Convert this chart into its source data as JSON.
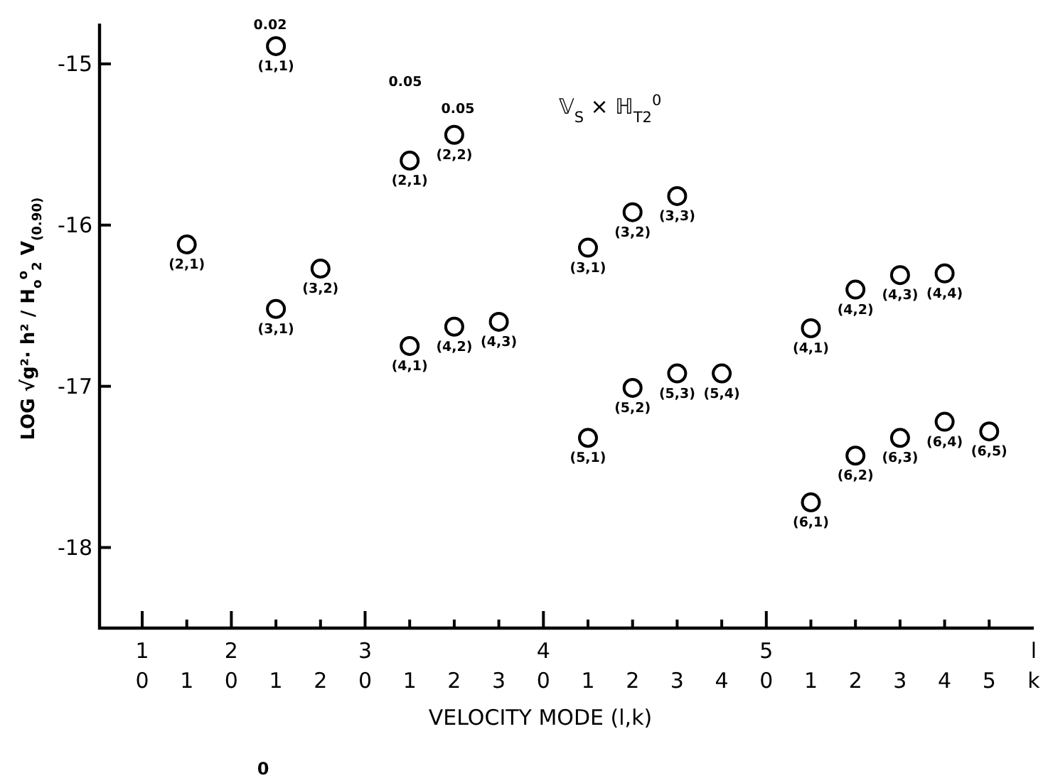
{
  "chart_data": {
    "type": "scatter",
    "title": "𝕍$_{S}$ × ℍ$_{T2}$$^{0}$",
    "xlabel": "VELOCITY MODE (l,k)",
    "ylabel": "LOG √g²· h² / H$_{o}$$^{o}$$_{2}$ V$_{(0.90)}$",
    "categories": [
      "1\n0",
      "1",
      "2\n0",
      "1",
      "2",
      "3\n0",
      "1",
      "2",
      "3",
      "4\n0",
      "1",
      "2",
      "3",
      "4",
      "5\n0",
      "1",
      "2",
      "3",
      "4",
      "5",
      "l\nk"
    ],
    "ylim": [
      -18.5,
      -14.75
    ],
    "yticks": [
      -15,
      -16,
      -17,
      -18
    ],
    "marker": "circle",
    "series": [
      {
        "name": "(1,1)",
        "color": "#000000",
        "values": [
          null,
          null,
          null,
          -14.89,
          null,
          null,
          null,
          null,
          null,
          null,
          null,
          null,
          null,
          null,
          null,
          null,
          null,
          null,
          null,
          null,
          null
        ]
      },
      {
        "name": "(2,1)",
        "color": "#000000",
        "values": [
          null,
          -16.12,
          null,
          null,
          null,
          null,
          -15.6,
          null,
          null,
          null,
          null,
          null,
          null,
          null,
          null,
          null,
          null,
          null,
          null,
          null,
          null
        ]
      },
      {
        "name": "(2,2)",
        "color": "#000000",
        "values": [
          null,
          null,
          null,
          null,
          null,
          null,
          null,
          -15.44,
          null,
          null,
          null,
          null,
          null,
          null,
          null,
          null,
          null,
          null,
          null,
          null,
          null
        ]
      },
      {
        "name": "(3,1)",
        "color": "#000000",
        "values": [
          null,
          null,
          null,
          -16.52,
          null,
          null,
          null,
          null,
          null,
          null,
          -16.14,
          null,
          null,
          null,
          null,
          null,
          null,
          null,
          null,
          null,
          null
        ]
      },
      {
        "name": "(3,2)",
        "color": "#000000",
        "values": [
          null,
          null,
          null,
          null,
          -16.27,
          null,
          null,
          null,
          null,
          null,
          null,
          -15.92,
          null,
          null,
          null,
          null,
          null,
          null,
          null,
          null,
          null
        ]
      },
      {
        "name": "(3,3)",
        "color": "#000000",
        "values": [
          null,
          null,
          null,
          null,
          null,
          null,
          null,
          null,
          null,
          null,
          null,
          null,
          -15.82,
          null,
          null,
          null,
          null,
          null,
          null,
          null,
          null
        ]
      },
      {
        "name": "(4,1)",
        "color": "#000000",
        "values": [
          null,
          null,
          null,
          null,
          null,
          null,
          -16.75,
          null,
          null,
          null,
          null,
          null,
          null,
          null,
          null,
          -16.64,
          null,
          null,
          null,
          null,
          null
        ]
      },
      {
        "name": "(4,2)",
        "color": "#000000",
        "values": [
          null,
          null,
          null,
          null,
          null,
          null,
          null,
          -16.63,
          null,
          null,
          null,
          null,
          null,
          null,
          null,
          null,
          -16.4,
          null,
          null,
          null,
          null
        ]
      },
      {
        "name": "(4,3)",
        "color": "#000000",
        "values": [
          null,
          null,
          null,
          null,
          null,
          null,
          null,
          null,
          -16.6,
          null,
          null,
          null,
          null,
          null,
          null,
          null,
          null,
          -16.31,
          null,
          null,
          null
        ]
      },
      {
        "name": "(4,4)",
        "color": "#000000",
        "values": [
          null,
          null,
          null,
          null,
          null,
          null,
          null,
          null,
          null,
          null,
          null,
          null,
          null,
          null,
          null,
          null,
          null,
          null,
          -16.3,
          null,
          null
        ]
      },
      {
        "name": "(5,1)",
        "color": "#000000",
        "values": [
          null,
          null,
          null,
          null,
          null,
          null,
          null,
          null,
          null,
          null,
          -17.32,
          null,
          null,
          null,
          null,
          null,
          null,
          null,
          null,
          null,
          null
        ]
      },
      {
        "name": "(5,2)",
        "color": "#000000",
        "values": [
          null,
          null,
          null,
          null,
          null,
          null,
          null,
          null,
          null,
          null,
          null,
          -17.01,
          null,
          null,
          null,
          null,
          null,
          null,
          null,
          null,
          null
        ]
      },
      {
        "name": "(5,3)",
        "color": "#000000",
        "values": [
          null,
          null,
          null,
          null,
          null,
          null,
          null,
          null,
          null,
          null,
          null,
          null,
          -16.92,
          null,
          null,
          null,
          null,
          null,
          null,
          null,
          null
        ]
      },
      {
        "name": "(5,4)",
        "color": "#000000",
        "values": [
          null,
          null,
          null,
          null,
          null,
          null,
          null,
          null,
          null,
          null,
          null,
          null,
          null,
          -16.92,
          null,
          null,
          null,
          null,
          null,
          null,
          null
        ]
      },
      {
        "name": "(6,1)",
        "color": "#000000",
        "values": [
          null,
          null,
          null,
          null,
          null,
          null,
          null,
          null,
          null,
          null,
          null,
          null,
          null,
          null,
          null,
          -17.72,
          null,
          null,
          null,
          null,
          null
        ]
      },
      {
        "name": "(6,2)",
        "color": "#000000",
        "values": [
          null,
          null,
          null,
          null,
          null,
          null,
          null,
          null,
          null,
          null,
          null,
          null,
          null,
          null,
          null,
          null,
          -17.43,
          null,
          null,
          null,
          null
        ]
      },
      {
        "name": "(6,3)",
        "color": "#000000",
        "values": [
          null,
          null,
          null,
          null,
          null,
          null,
          null,
          null,
          null,
          null,
          null,
          null,
          null,
          null,
          null,
          null,
          null,
          -17.32,
          null,
          null,
          null
        ]
      },
      {
        "name": "(6,4)",
        "color": "#000000",
        "values": [
          null,
          null,
          null,
          null,
          null,
          null,
          null,
          null,
          null,
          null,
          null,
          null,
          null,
          null,
          null,
          null,
          null,
          null,
          -17.22,
          null,
          null
        ]
      },
      {
        "name": "(6,5)",
        "color": "#000000",
        "values": [
          null,
          null,
          null,
          null,
          null,
          null,
          null,
          null,
          null,
          null,
          null,
          null,
          null,
          null,
          null,
          null,
          null,
          null,
          null,
          -17.28,
          null
        ]
      }
    ],
    "annotations": [
      "0.02",
      "0.05",
      "0.05",
      "0"
    ]
  }
}
